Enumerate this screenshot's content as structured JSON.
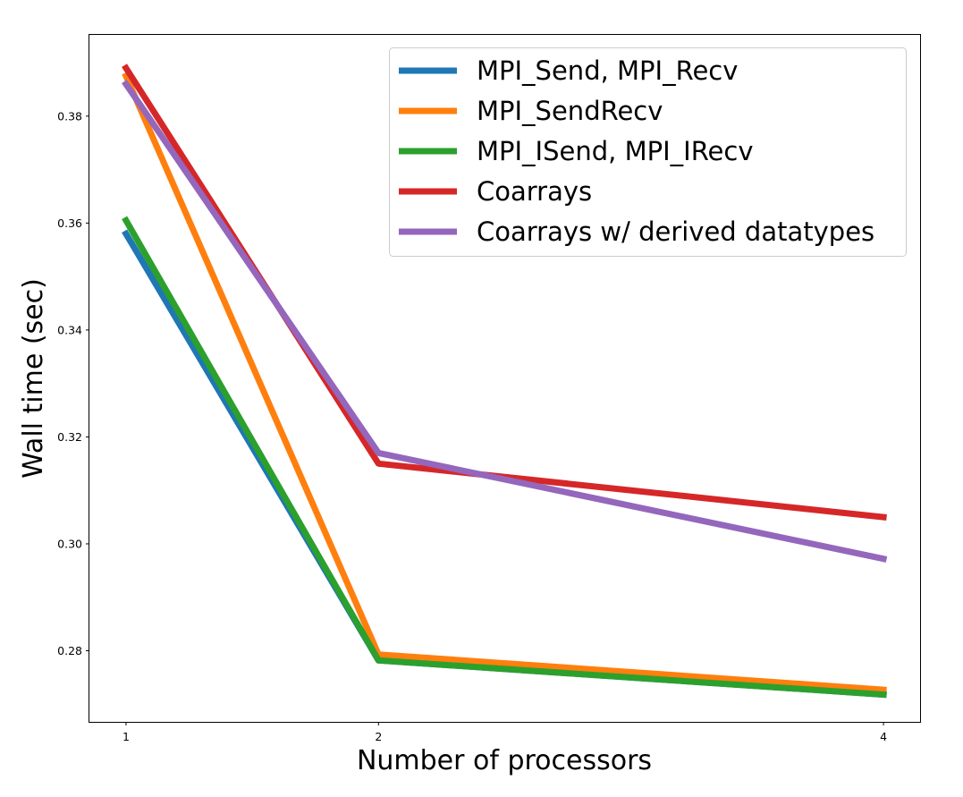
{
  "chart_data": {
    "type": "line",
    "title": "",
    "xlabel": "Number of processors",
    "ylabel": "Wall time (sec)",
    "x": [
      1,
      2,
      4
    ],
    "x_tick_labels": [
      "1",
      "2",
      "4"
    ],
    "xlim": [
      0.855,
      4.145
    ],
    "ylim": [
      0.2667,
      0.3952
    ],
    "y_ticks": [
      0.28,
      0.3,
      0.32,
      0.34,
      0.36,
      0.38
    ],
    "y_tick_labels": [
      "0.28",
      "0.30",
      "0.32",
      "0.34",
      "0.36",
      "0.38"
    ],
    "grid": false,
    "legend_position": "top-right",
    "series": [
      {
        "name": "MPI_Send, MPI_Recv",
        "color": "#1f77b4",
        "values": [
          0.358,
          0.2782,
          0.2718
        ]
      },
      {
        "name": "MPI_SendRecv",
        "color": "#ff7f0e",
        "values": [
          0.3875,
          0.2793,
          0.2727
        ]
      },
      {
        "name": "MPI_ISend, MPI_IRecv",
        "color": "#2ca02c",
        "values": [
          0.3605,
          0.2782,
          0.2718
        ]
      },
      {
        "name": "Coarrays",
        "color": "#d62728",
        "values": [
          0.389,
          0.315,
          0.305
        ]
      },
      {
        "name": "Coarrays w/ derived datatypes",
        "color": "#9467bd",
        "values": [
          0.386,
          0.317,
          0.2972
        ]
      }
    ]
  }
}
